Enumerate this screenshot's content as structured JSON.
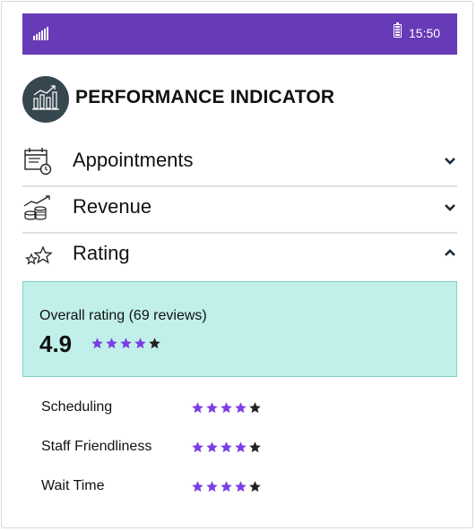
{
  "status_bar": {
    "time": "15:50",
    "background": "#673ab7",
    "signal_icon": "signal-icon",
    "battery_icon": "battery-icon"
  },
  "header": {
    "title": "PERFORMANCE INDICATOR",
    "icon": "performance-chart-icon"
  },
  "sections": [
    {
      "label": "Appointments",
      "icon": "calendar-clock-icon",
      "expanded": false
    },
    {
      "label": "Revenue",
      "icon": "coins-growth-icon",
      "expanded": false
    },
    {
      "label": "Rating",
      "icon": "stars-icon",
      "expanded": true
    }
  ],
  "rating": {
    "overall_caption": "Overall rating (69 reviews)",
    "overall_score": "4.9",
    "overall_stars": 4,
    "max_stars": 5,
    "categories": [
      {
        "name": "Scheduling",
        "stars": 4
      },
      {
        "name": "Staff Friendliness",
        "stars": 4
      },
      {
        "name": "Wait Time",
        "stars": 4
      }
    ]
  },
  "colors": {
    "accent": "#7b3fe4",
    "panel_bg": "#c1f0ea",
    "panel_border": "#7dd4c9",
    "header_icon_bg": "#37474f"
  }
}
